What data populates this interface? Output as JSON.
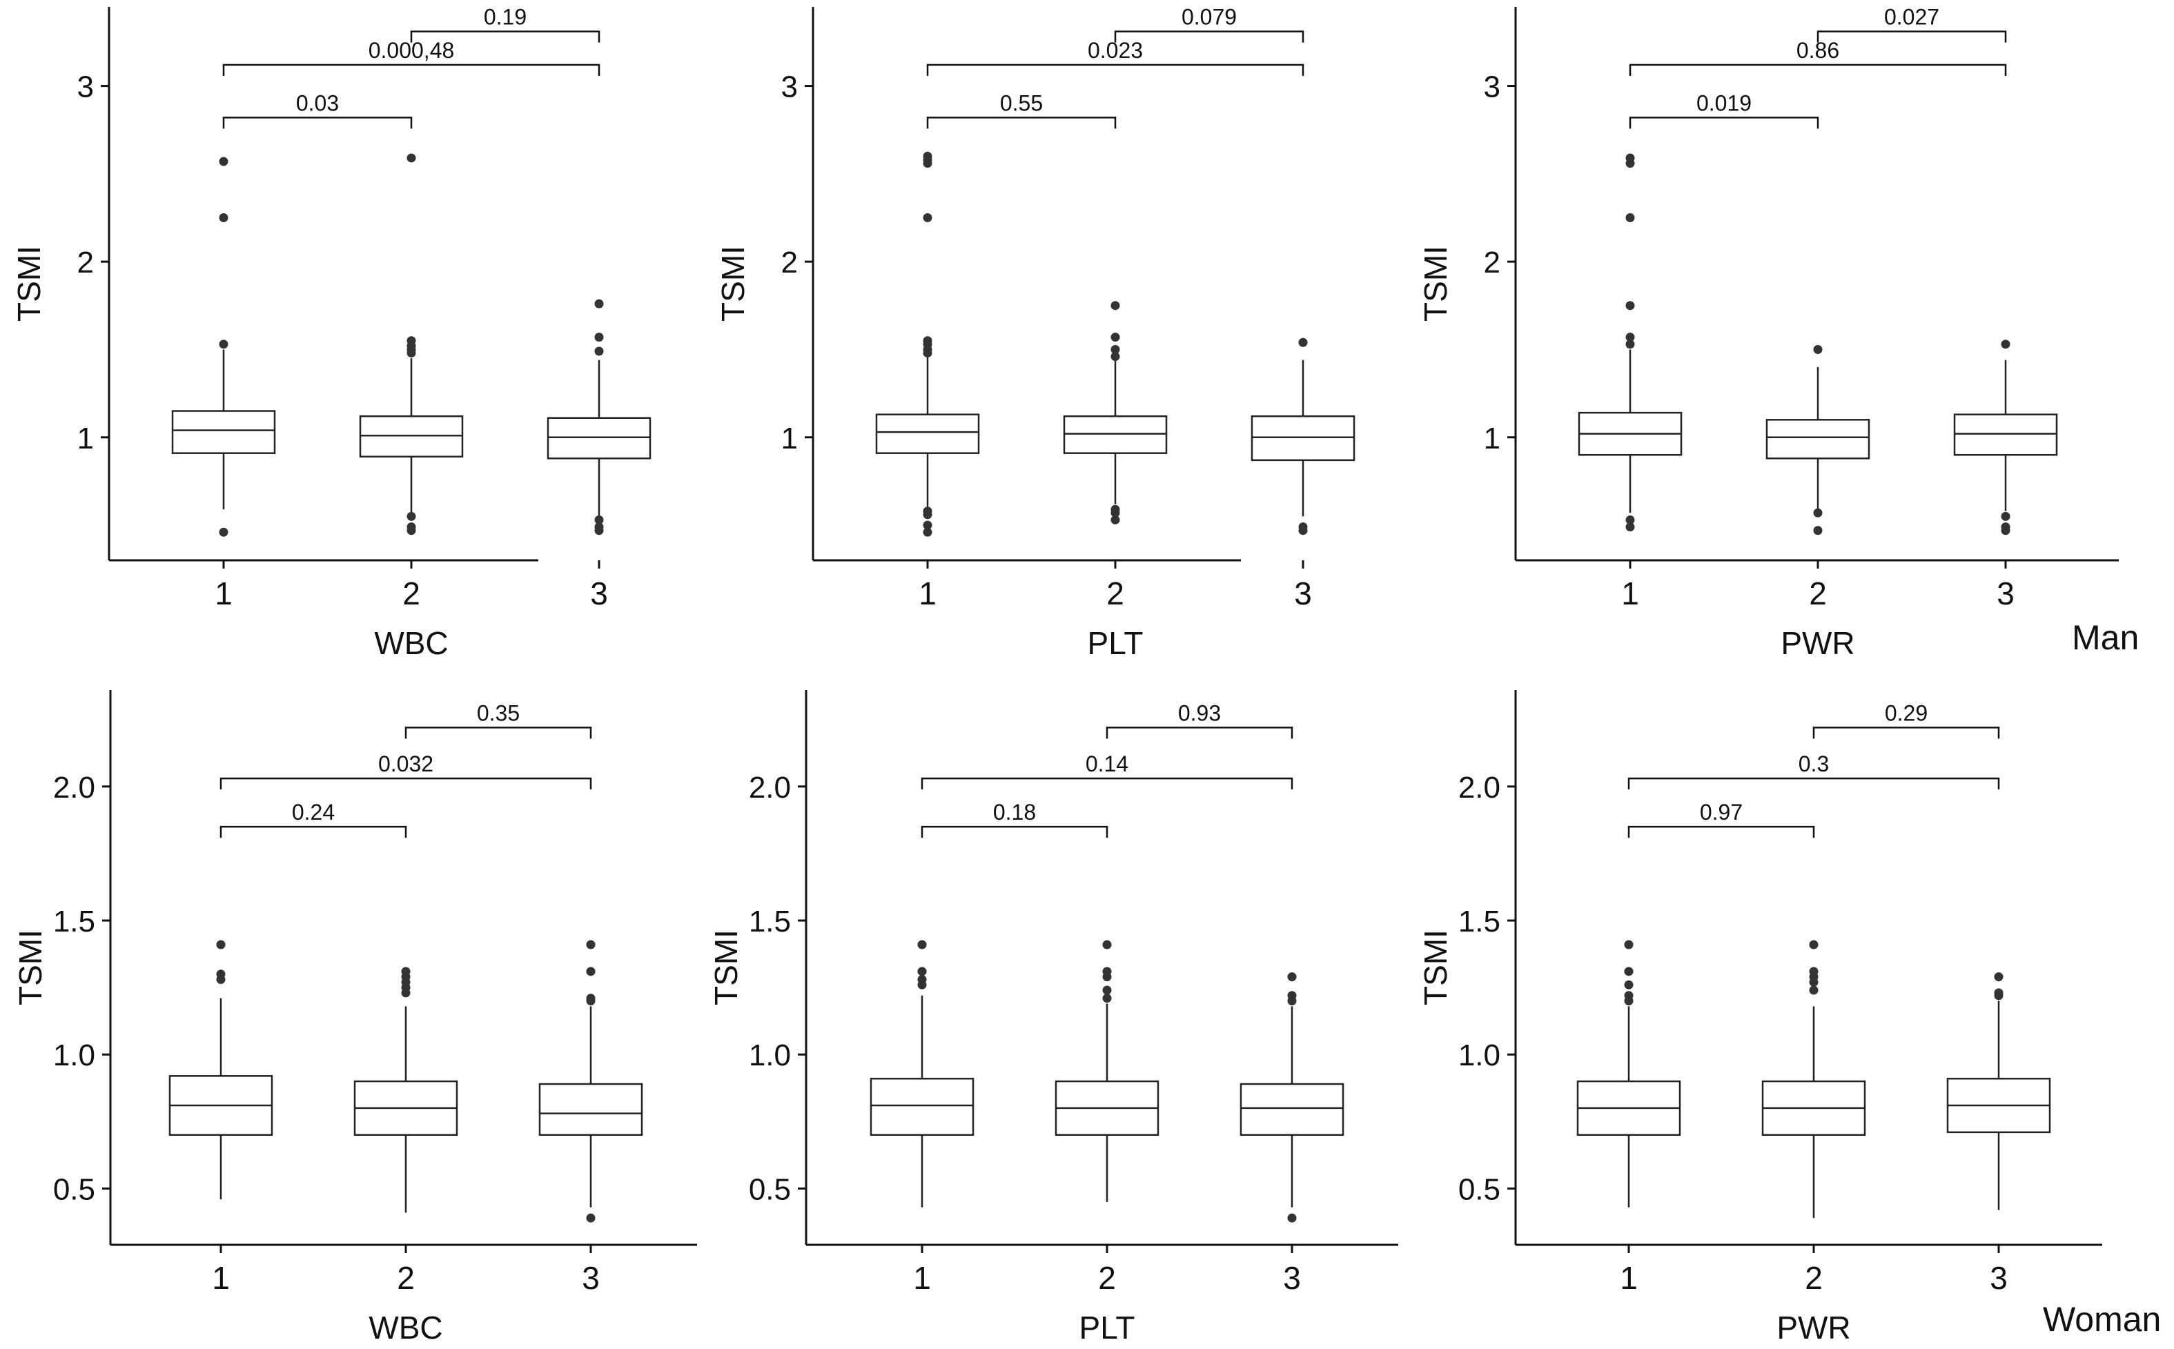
{
  "row_labels": {
    "top": "Man",
    "bottom": "Woman"
  },
  "chart_data": [
    {
      "type": "boxplot",
      "xlabel": "WBC",
      "ylabel": "TSMI",
      "categories": [
        "1",
        "2",
        "3"
      ],
      "ylim": [
        0.3,
        3.45
      ],
      "yticks": [
        1,
        2,
        3
      ],
      "ytick_labels": [
        "1",
        "2",
        "3"
      ],
      "boxes": [
        {
          "category": "1",
          "q1": 0.91,
          "median": 1.04,
          "q3": 1.15,
          "whisker_low": 0.59,
          "whisker_high": 1.5,
          "outliers": [
            0.46,
            1.53,
            2.25,
            2.57
          ]
        },
        {
          "category": "2",
          "q1": 0.89,
          "median": 1.01,
          "q3": 1.12,
          "whisker_low": 0.57,
          "whisker_high": 1.45,
          "outliers": [
            0.47,
            0.49,
            0.55,
            1.48,
            1.5,
            1.52,
            1.55,
            2.59
          ]
        },
        {
          "category": "3",
          "q1": 0.88,
          "median": 1.0,
          "q3": 1.11,
          "whisker_low": 0.55,
          "whisker_high": 1.44,
          "outliers": [
            0.47,
            0.49,
            0.53,
            1.49,
            1.57,
            1.76
          ]
        }
      ],
      "comparisons": [
        {
          "from": "1",
          "to": "2",
          "y": 2.82,
          "label": "0.03"
        },
        {
          "from": "1",
          "to": "3",
          "y": 3.12,
          "label": "0.000,48"
        },
        {
          "from": "2",
          "to": "3",
          "y": 3.31,
          "label": "0.19"
        }
      ]
    },
    {
      "type": "boxplot",
      "xlabel": "PLT",
      "ylabel": "TSMI",
      "categories": [
        "1",
        "2",
        "3"
      ],
      "ylim": [
        0.3,
        3.45
      ],
      "yticks": [
        1,
        2,
        3
      ],
      "ytick_labels": [
        "1",
        "2",
        "3"
      ],
      "boxes": [
        {
          "category": "1",
          "q1": 0.91,
          "median": 1.03,
          "q3": 1.13,
          "whisker_low": 0.6,
          "whisker_high": 1.46,
          "outliers": [
            0.46,
            0.5,
            0.56,
            0.58,
            1.48,
            1.5,
            1.53,
            1.55,
            2.25,
            2.56,
            2.58,
            2.6
          ]
        },
        {
          "category": "2",
          "q1": 0.91,
          "median": 1.02,
          "q3": 1.12,
          "whisker_low": 0.62,
          "whisker_high": 1.44,
          "outliers": [
            0.53,
            0.57,
            0.59,
            1.46,
            1.5,
            1.57,
            1.75
          ]
        },
        {
          "category": "3",
          "q1": 0.87,
          "median": 1.0,
          "q3": 1.12,
          "whisker_low": 0.55,
          "whisker_high": 1.44,
          "outliers": [
            0.47,
            0.49,
            1.54
          ]
        }
      ],
      "comparisons": [
        {
          "from": "1",
          "to": "2",
          "y": 2.82,
          "label": "0.55"
        },
        {
          "from": "1",
          "to": "3",
          "y": 3.12,
          "label": "0.023"
        },
        {
          "from": "2",
          "to": "3",
          "y": 3.31,
          "label": "0.079"
        }
      ]
    },
    {
      "type": "boxplot",
      "xlabel": "PWR",
      "ylabel": "TSMI",
      "categories": [
        "1",
        "2",
        "3"
      ],
      "ylim": [
        0.3,
        3.45
      ],
      "yticks": [
        1,
        2,
        3
      ],
      "ytick_labels": [
        "1",
        "2",
        "3"
      ],
      "boxes": [
        {
          "category": "1",
          "q1": 0.9,
          "median": 1.02,
          "q3": 1.14,
          "whisker_low": 0.57,
          "whisker_high": 1.5,
          "outliers": [
            0.49,
            0.53,
            1.53,
            1.57,
            1.75,
            2.25,
            2.56,
            2.59
          ]
        },
        {
          "category": "2",
          "q1": 0.88,
          "median": 1.0,
          "q3": 1.1,
          "whisker_low": 0.58,
          "whisker_high": 1.4,
          "outliers": [
            0.47,
            0.57,
            1.5
          ]
        },
        {
          "category": "3",
          "q1": 0.9,
          "median": 1.02,
          "q3": 1.13,
          "whisker_low": 0.58,
          "whisker_high": 1.44,
          "outliers": [
            0.47,
            0.49,
            0.55,
            1.53
          ]
        }
      ],
      "comparisons": [
        {
          "from": "1",
          "to": "2",
          "y": 2.82,
          "label": "0.019"
        },
        {
          "from": "1",
          "to": "3",
          "y": 3.12,
          "label": "0.86"
        },
        {
          "from": "2",
          "to": "3",
          "y": 3.31,
          "label": "0.027"
        }
      ]
    },
    {
      "type": "boxplot",
      "xlabel": "WBC",
      "ylabel": "TSMI",
      "categories": [
        "1",
        "2",
        "3"
      ],
      "ylim": [
        0.29,
        2.36
      ],
      "yticks": [
        0.5,
        1.0,
        1.5,
        2.0
      ],
      "ytick_labels": [
        "0.5",
        "1.0",
        "1.5",
        "2.0"
      ],
      "boxes": [
        {
          "category": "1",
          "q1": 0.7,
          "median": 0.81,
          "q3": 0.92,
          "whisker_low": 0.46,
          "whisker_high": 1.21,
          "outliers": [
            1.28,
            1.3,
            1.41
          ]
        },
        {
          "category": "2",
          "q1": 0.7,
          "median": 0.8,
          "q3": 0.9,
          "whisker_low": 0.41,
          "whisker_high": 1.18,
          "outliers": [
            1.23,
            1.25,
            1.27,
            1.29,
            1.31
          ]
        },
        {
          "category": "3",
          "q1": 0.7,
          "median": 0.78,
          "q3": 0.89,
          "whisker_low": 0.43,
          "whisker_high": 1.18,
          "outliers": [
            0.39,
            1.2,
            1.21,
            1.31,
            1.41
          ]
        }
      ],
      "comparisons": [
        {
          "from": "1",
          "to": "2",
          "y": 1.85,
          "label": "0.24"
        },
        {
          "from": "1",
          "to": "3",
          "y": 2.03,
          "label": "0.032"
        },
        {
          "from": "2",
          "to": "3",
          "y": 2.22,
          "label": "0.35"
        }
      ]
    },
    {
      "type": "boxplot",
      "xlabel": "PLT",
      "ylabel": "TSMI",
      "categories": [
        "1",
        "2",
        "3"
      ],
      "ylim": [
        0.29,
        2.36
      ],
      "yticks": [
        0.5,
        1.0,
        1.5,
        2.0
      ],
      "ytick_labels": [
        "0.5",
        "1.0",
        "1.5",
        "2.0"
      ],
      "boxes": [
        {
          "category": "1",
          "q1": 0.7,
          "median": 0.81,
          "q3": 0.91,
          "whisker_low": 0.43,
          "whisker_high": 1.22,
          "outliers": [
            1.26,
            1.28,
            1.31,
            1.41
          ]
        },
        {
          "category": "2",
          "q1": 0.7,
          "median": 0.8,
          "q3": 0.9,
          "whisker_low": 0.45,
          "whisker_high": 1.19,
          "outliers": [
            1.21,
            1.24,
            1.29,
            1.31,
            1.41
          ]
        },
        {
          "category": "3",
          "q1": 0.7,
          "median": 0.8,
          "q3": 0.89,
          "whisker_low": 0.43,
          "whisker_high": 1.18,
          "outliers": [
            0.39,
            1.2,
            1.22,
            1.29
          ]
        }
      ],
      "comparisons": [
        {
          "from": "1",
          "to": "2",
          "y": 1.85,
          "label": "0.18"
        },
        {
          "from": "1",
          "to": "3",
          "y": 2.03,
          "label": "0.14"
        },
        {
          "from": "2",
          "to": "3",
          "y": 2.22,
          "label": "0.93"
        }
      ]
    },
    {
      "type": "boxplot",
      "xlabel": "PWR",
      "ylabel": "TSMI",
      "categories": [
        "1",
        "2",
        "3"
      ],
      "ylim": [
        0.29,
        2.36
      ],
      "yticks": [
        0.5,
        1.0,
        1.5,
        2.0
      ],
      "ytick_labels": [
        "0.5",
        "1.0",
        "1.5",
        "2.0"
      ],
      "boxes": [
        {
          "category": "1",
          "q1": 0.7,
          "median": 0.8,
          "q3": 0.9,
          "whisker_low": 0.43,
          "whisker_high": 1.18,
          "outliers": [
            1.2,
            1.22,
            1.26,
            1.31,
            1.41
          ]
        },
        {
          "category": "2",
          "q1": 0.7,
          "median": 0.8,
          "q3": 0.9,
          "whisker_low": 0.39,
          "whisker_high": 1.18,
          "outliers": [
            1.24,
            1.27,
            1.29,
            1.31,
            1.41
          ]
        },
        {
          "category": "3",
          "q1": 0.71,
          "median": 0.81,
          "q3": 0.91,
          "whisker_low": 0.42,
          "whisker_high": 1.2,
          "outliers": [
            1.22,
            1.23,
            1.29
          ]
        }
      ],
      "comparisons": [
        {
          "from": "1",
          "to": "2",
          "y": 1.85,
          "label": "0.97"
        },
        {
          "from": "1",
          "to": "3",
          "y": 2.03,
          "label": "0.3"
        },
        {
          "from": "2",
          "to": "3",
          "y": 2.22,
          "label": "0.29"
        }
      ]
    }
  ]
}
